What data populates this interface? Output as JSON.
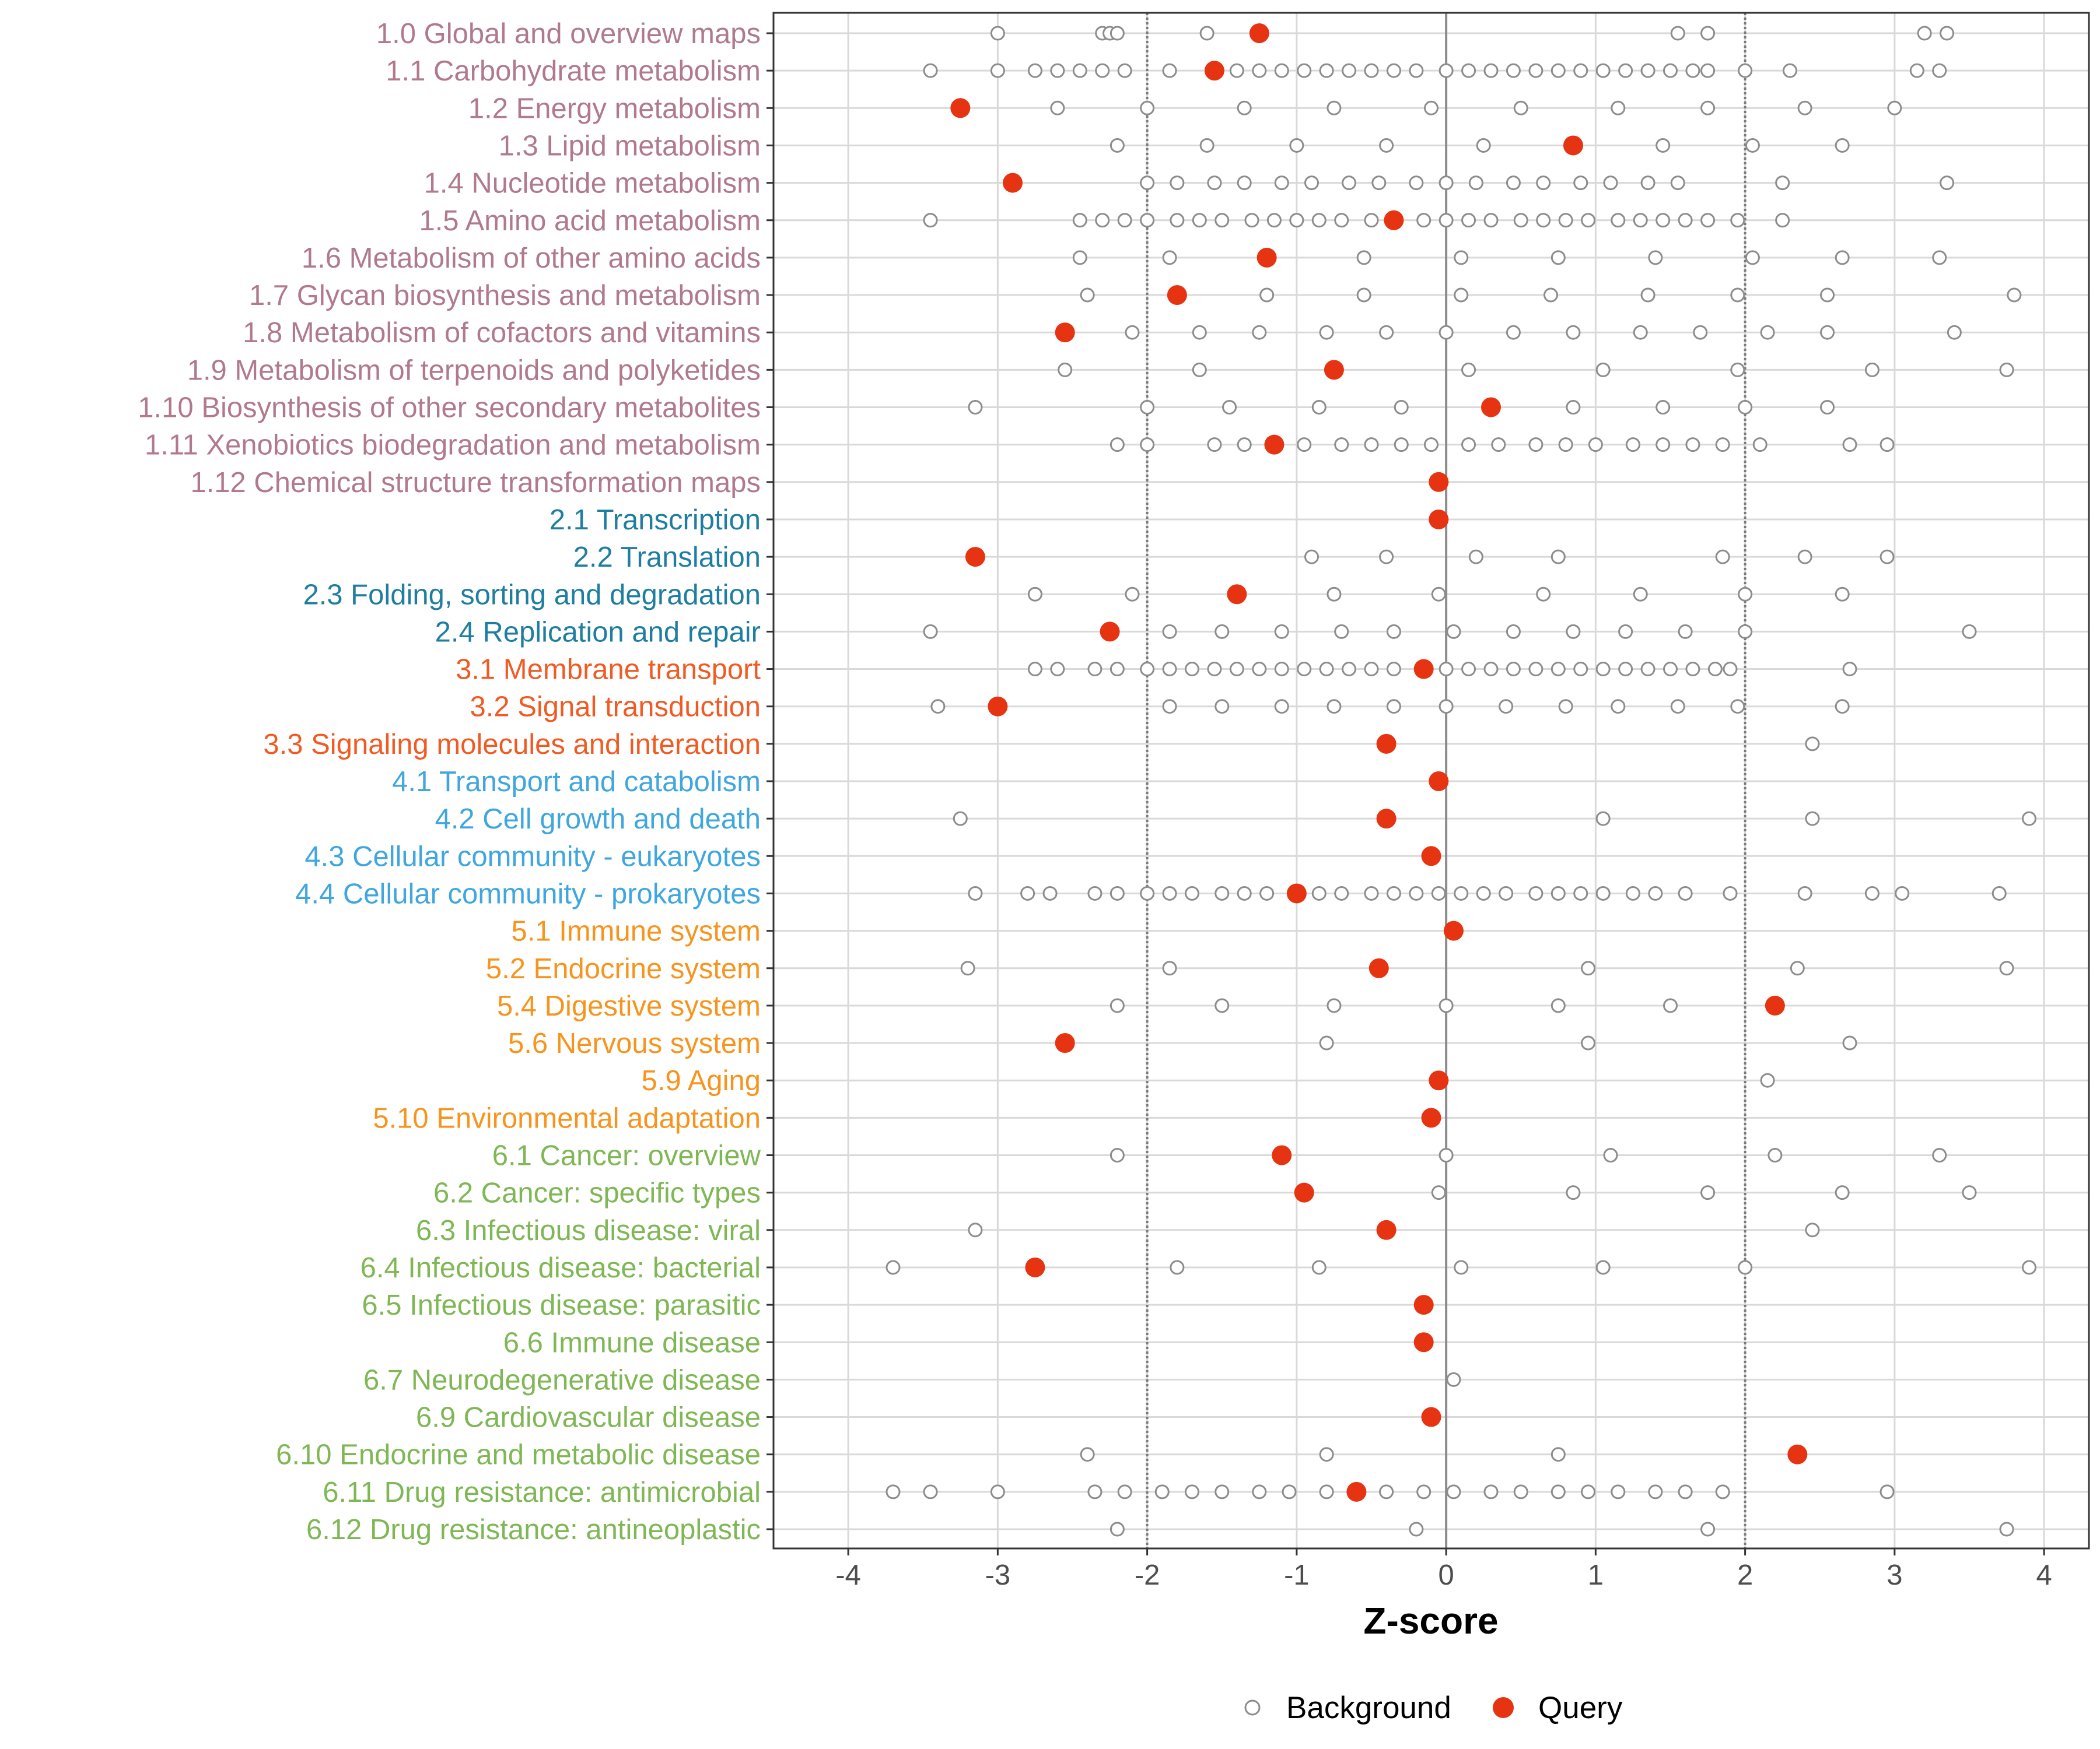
{
  "chart_data": {
    "type": "scatter",
    "xlabel": "Z-score",
    "xlim": [
      -4.5,
      4.3
    ],
    "x_ticks": [
      -4,
      -3,
      -2,
      -1,
      0,
      1,
      2,
      3,
      4
    ],
    "x_tick_labels": [
      "-4",
      "-3",
      "-2",
      "-1",
      "0",
      "1",
      "2",
      "3",
      "4"
    ],
    "reference_lines": [
      -2,
      0,
      2
    ],
    "legend": {
      "position": "bottom",
      "entries": [
        "Background",
        "Query"
      ]
    },
    "group_colors": {
      "1": "#b07a8c",
      "2": "#1f7ea0",
      "3": "#f15a22",
      "4": "#3fa6de",
      "5": "#f7941d",
      "6": "#7fb755"
    },
    "colors": {
      "background_marker": "#8c8c8c",
      "query_marker": "#e63312",
      "grid": "#d9d9d9"
    },
    "categories": [
      {
        "label": "1.0 Global and overview maps",
        "group": "1",
        "query": -1.25,
        "background": [
          -3.0,
          -2.3,
          -2.25,
          -2.2,
          -1.6,
          1.55,
          1.75,
          3.2,
          3.35
        ]
      },
      {
        "label": "1.1 Carbohydrate metabolism",
        "group": "1",
        "query": -1.55,
        "background": [
          -3.45,
          -3.0,
          -2.75,
          -2.6,
          -2.45,
          -2.3,
          -2.15,
          -1.85,
          -1.4,
          -1.25,
          -1.1,
          -0.95,
          -0.8,
          -0.65,
          -0.5,
          -0.35,
          -0.2,
          0.0,
          0.15,
          0.3,
          0.45,
          0.6,
          0.75,
          0.9,
          1.05,
          1.2,
          1.35,
          1.5,
          1.65,
          1.75,
          2.0,
          2.3,
          3.15,
          3.3
        ]
      },
      {
        "label": "1.2 Energy metabolism",
        "group": "1",
        "query": -3.25,
        "background": [
          -2.6,
          -2.0,
          -1.35,
          -0.75,
          -0.1,
          0.5,
          1.15,
          1.75,
          2.4,
          3.0
        ]
      },
      {
        "label": "1.3 Lipid metabolism",
        "group": "1",
        "query": 0.85,
        "background": [
          -2.2,
          -1.6,
          -1.0,
          -0.4,
          0.25,
          1.45,
          2.05,
          2.65
        ]
      },
      {
        "label": "1.4 Nucleotide metabolism",
        "group": "1",
        "query": -2.9,
        "background": [
          -2.0,
          -1.8,
          -1.55,
          -1.35,
          -1.1,
          -0.9,
          -0.65,
          -0.45,
          -0.2,
          0.0,
          0.2,
          0.45,
          0.65,
          0.9,
          1.1,
          1.35,
          1.55,
          2.25,
          3.35
        ]
      },
      {
        "label": "1.5 Amino acid metabolism",
        "group": "1",
        "query": -0.35,
        "background": [
          -3.45,
          -2.45,
          -2.3,
          -2.15,
          -2.0,
          -1.8,
          -1.65,
          -1.5,
          -1.3,
          -1.15,
          -1.0,
          -0.85,
          -0.7,
          -0.5,
          -0.15,
          0.0,
          0.15,
          0.3,
          0.5,
          0.65,
          0.8,
          0.95,
          1.15,
          1.3,
          1.45,
          1.6,
          1.75,
          1.95,
          2.25
        ]
      },
      {
        "label": "1.6 Metabolism of other amino acids",
        "group": "1",
        "query": -1.2,
        "background": [
          -2.45,
          -1.85,
          -0.55,
          0.1,
          0.75,
          1.4,
          2.05,
          2.65,
          3.3
        ]
      },
      {
        "label": "1.7 Glycan biosynthesis and metabolism",
        "group": "1",
        "query": -1.8,
        "background": [
          -2.4,
          -1.2,
          -0.55,
          0.1,
          0.7,
          1.35,
          1.95,
          2.55,
          3.8
        ]
      },
      {
        "label": "1.8 Metabolism of cofactors and vitamins",
        "group": "1",
        "query": -2.55,
        "background": [
          -2.1,
          -1.65,
          -1.25,
          -0.8,
          -0.4,
          0.0,
          0.45,
          0.85,
          1.3,
          1.7,
          2.15,
          2.55,
          3.4
        ]
      },
      {
        "label": "1.9 Metabolism of terpenoids and polyketides",
        "group": "1",
        "query": -0.75,
        "background": [
          -2.55,
          -1.65,
          0.15,
          1.05,
          1.95,
          2.85,
          3.75
        ]
      },
      {
        "label": "1.10 Biosynthesis of other secondary metabolites",
        "group": "1",
        "query": 0.3,
        "background": [
          -3.15,
          -2.0,
          -1.45,
          -0.85,
          -0.3,
          0.85,
          1.45,
          2.0,
          2.55
        ]
      },
      {
        "label": "1.11 Xenobiotics biodegradation and metabolism",
        "group": "1",
        "query": -1.15,
        "background": [
          -2.2,
          -2.0,
          -1.55,
          -1.35,
          -0.95,
          -0.7,
          -0.5,
          -0.3,
          -0.1,
          0.15,
          0.35,
          0.6,
          0.8,
          1.0,
          1.25,
          1.45,
          1.65,
          1.85,
          2.1,
          2.7,
          2.95
        ]
      },
      {
        "label": "1.12 Chemical structure transformation maps",
        "group": "1",
        "query": -0.05,
        "background": []
      },
      {
        "label": "2.1 Transcription",
        "group": "2",
        "query": -0.05,
        "background": []
      },
      {
        "label": "2.2 Translation",
        "group": "2",
        "query": -3.15,
        "background": [
          -0.9,
          -0.4,
          0.2,
          0.75,
          1.85,
          2.4,
          2.95
        ]
      },
      {
        "label": "2.3 Folding, sorting and degradation",
        "group": "2",
        "query": -1.4,
        "background": [
          -2.75,
          -2.1,
          -0.75,
          -0.05,
          0.65,
          1.3,
          2.0,
          2.65
        ]
      },
      {
        "label": "2.4 Replication and repair",
        "group": "2",
        "query": -2.25,
        "background": [
          -3.45,
          -1.85,
          -1.5,
          -1.1,
          -0.7,
          -0.35,
          0.05,
          0.45,
          0.85,
          1.2,
          1.6,
          2.0,
          3.5
        ]
      },
      {
        "label": "3.1 Membrane transport",
        "group": "3",
        "query": -0.15,
        "background": [
          -2.75,
          -2.6,
          -2.35,
          -2.2,
          -2.0,
          -1.85,
          -1.7,
          -1.55,
          -1.4,
          -1.25,
          -1.1,
          -0.95,
          -0.8,
          -0.65,
          -0.5,
          -0.35,
          0.0,
          0.15,
          0.3,
          0.45,
          0.6,
          0.75,
          0.9,
          1.05,
          1.2,
          1.35,
          1.5,
          1.65,
          1.8,
          1.9,
          2.7
        ]
      },
      {
        "label": "3.2 Signal transduction",
        "group": "3",
        "query": -3.0,
        "background": [
          -3.4,
          -1.85,
          -1.5,
          -1.1,
          -0.75,
          -0.35,
          0.0,
          0.4,
          0.8,
          1.15,
          1.55,
          1.95,
          2.65
        ]
      },
      {
        "label": "3.3 Signaling molecules and interaction",
        "group": "3",
        "query": -0.4,
        "background": [
          2.45
        ]
      },
      {
        "label": "4.1 Transport and catabolism",
        "group": "4",
        "query": -0.05,
        "background": []
      },
      {
        "label": "4.2 Cell growth and death",
        "group": "4",
        "query": -0.4,
        "background": [
          -3.25,
          1.05,
          2.45,
          3.9
        ]
      },
      {
        "label": "4.3 Cellular community - eukaryotes",
        "group": "4",
        "query": -0.1,
        "background": []
      },
      {
        "label": "4.4 Cellular community - prokaryotes",
        "group": "4",
        "query": -1.0,
        "background": [
          -3.15,
          -2.8,
          -2.65,
          -2.35,
          -2.2,
          -2.0,
          -1.85,
          -1.7,
          -1.5,
          -1.35,
          -1.2,
          -0.85,
          -0.7,
          -0.5,
          -0.35,
          -0.2,
          -0.05,
          0.1,
          0.25,
          0.4,
          0.6,
          0.75,
          0.9,
          1.05,
          1.25,
          1.4,
          1.6,
          1.9,
          2.4,
          2.85,
          3.05,
          3.7
        ]
      },
      {
        "label": "5.1 Immune system",
        "group": "5",
        "query": 0.05,
        "background": []
      },
      {
        "label": "5.2 Endocrine system",
        "group": "5",
        "query": -0.45,
        "background": [
          -3.2,
          -1.85,
          0.95,
          2.35,
          3.75
        ]
      },
      {
        "label": "5.4 Digestive system",
        "group": "5",
        "query": 2.2,
        "background": [
          -2.2,
          -1.5,
          -0.75,
          0.0,
          0.75,
          1.5
        ]
      },
      {
        "label": "5.6 Nervous system",
        "group": "5",
        "query": -2.55,
        "background": [
          -0.8,
          0.95,
          2.7
        ]
      },
      {
        "label": "5.9 Aging",
        "group": "5",
        "query": -0.05,
        "background": [
          2.15
        ]
      },
      {
        "label": "5.10 Environmental adaptation",
        "group": "5",
        "query": -0.1,
        "background": []
      },
      {
        "label": "6.1 Cancer: overview",
        "group": "6",
        "query": -1.1,
        "background": [
          -2.2,
          0.0,
          1.1,
          2.2,
          3.3
        ]
      },
      {
        "label": "6.2 Cancer: specific types",
        "group": "6",
        "query": -0.95,
        "background": [
          -0.05,
          0.85,
          1.75,
          2.65,
          3.5
        ]
      },
      {
        "label": "6.3 Infectious disease: viral",
        "group": "6",
        "query": -0.4,
        "background": [
          -3.15,
          2.45
        ]
      },
      {
        "label": "6.4 Infectious disease: bacterial",
        "group": "6",
        "query": -2.75,
        "background": [
          -3.7,
          -1.8,
          -0.85,
          0.1,
          1.05,
          2.0,
          3.9
        ]
      },
      {
        "label": "6.5 Infectious disease: parasitic",
        "group": "6",
        "query": -0.15,
        "background": []
      },
      {
        "label": "6.6 Immune disease",
        "group": "6",
        "query": -0.15,
        "background": []
      },
      {
        "label": "6.7 Neurodegenerative disease",
        "group": "6",
        "query": null,
        "background": [
          0.05
        ]
      },
      {
        "label": "6.9 Cardiovascular disease",
        "group": "6",
        "query": -0.1,
        "background": []
      },
      {
        "label": "6.10 Endocrine and metabolic disease",
        "group": "6",
        "query": 2.35,
        "background": [
          -2.4,
          -0.8,
          0.75
        ]
      },
      {
        "label": "6.11 Drug resistance: antimicrobial",
        "group": "6",
        "query": -0.6,
        "background": [
          -3.7,
          -3.45,
          -3.0,
          -2.35,
          -2.15,
          -1.9,
          -1.7,
          -1.5,
          -1.25,
          -1.05,
          -0.8,
          -0.4,
          -0.15,
          0.05,
          0.3,
          0.5,
          0.75,
          0.95,
          1.15,
          1.4,
          1.6,
          1.85,
          2.95
        ]
      },
      {
        "label": "6.12 Drug resistance: antineoplastic",
        "group": "6",
        "query": null,
        "background": [
          -2.2,
          -0.2,
          1.75,
          3.75
        ]
      }
    ]
  }
}
